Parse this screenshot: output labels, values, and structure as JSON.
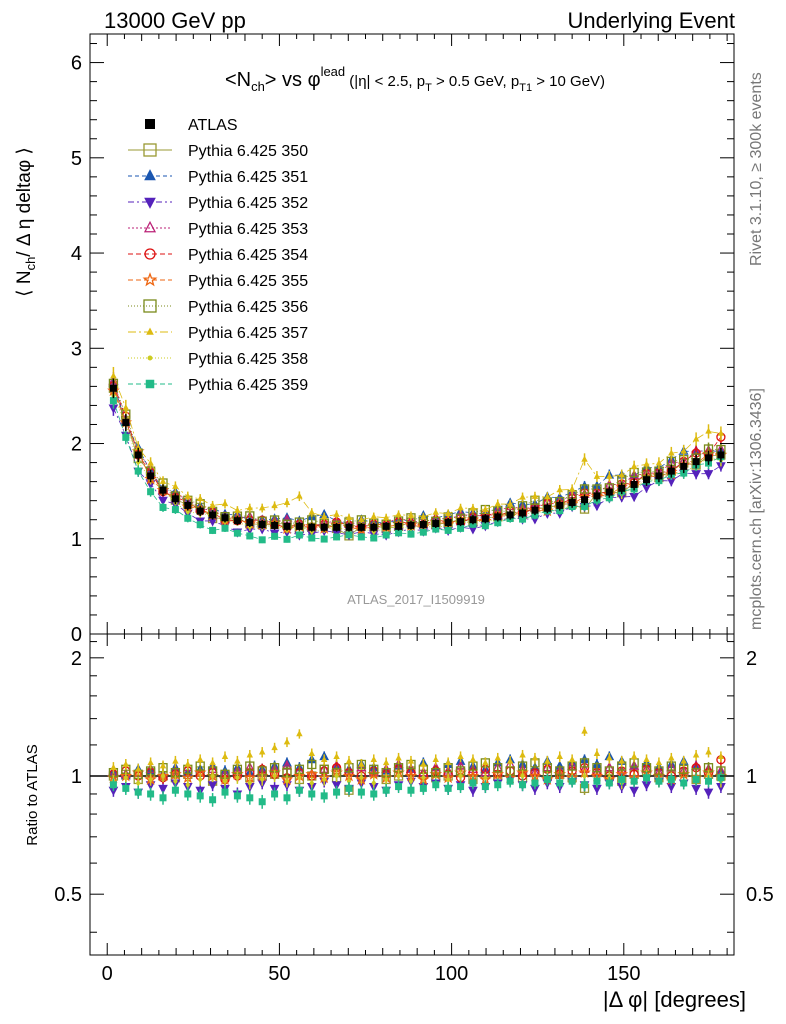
{
  "header": {
    "left": "13000 GeV pp",
    "right": "Underlying Event"
  },
  "side_labels": {
    "rivet": "Rivet 3.1.10, ≥ 300k events",
    "mcplots": "mcplots.cern.ch [arXiv:1306.3436]"
  },
  "chart_data": {
    "type": "scatter",
    "title_parts": {
      "a": "<N",
      "a_sub": "ch",
      "b": "> vs φ",
      "b_sup": "lead",
      "c": " (|η| < 2.5, p",
      "c_sub": "T",
      "d": " > 0.5 GeV, p",
      "d_sub": "T1",
      "e": " > 10 GeV)"
    },
    "ylabel_parts": {
      "a": "⟨ N",
      "a_sub": "ch",
      "b": "/ Δ η deltaφ ⟩"
    },
    "ratio_ylabel": "Ratio to ATLAS",
    "xlabel": "|Δ φ| [degrees]",
    "watermark": "ATLAS_2017_I1509919",
    "xlim": [
      -5,
      182
    ],
    "ylim": [
      0,
      6.3
    ],
    "ratio_ylim": [
      0.35,
      2.3
    ],
    "x_ticks": [
      "0",
      "50",
      "100",
      "150"
    ],
    "y_ticks": [
      "0",
      "1",
      "2",
      "3",
      "4",
      "5",
      "6"
    ],
    "ratio_ticks": [
      "0.5",
      "1",
      "2"
    ],
    "x": [
      1.8,
      5.4,
      9.0,
      12.6,
      16.2,
      19.8,
      23.4,
      27.0,
      30.6,
      34.2,
      37.8,
      41.4,
      45.0,
      48.6,
      52.2,
      55.8,
      59.4,
      63.0,
      66.6,
      70.2,
      73.8,
      77.4,
      81.0,
      84.6,
      88.2,
      91.8,
      95.4,
      99.0,
      102.6,
      106.2,
      109.8,
      113.4,
      117.0,
      120.6,
      124.2,
      127.8,
      131.4,
      135.0,
      138.6,
      142.2,
      145.8,
      149.4,
      153.0,
      156.6,
      160.2,
      163.8,
      167.4,
      171.0,
      174.6,
      178.2
    ],
    "atlas": [
      2.58,
      2.22,
      1.88,
      1.66,
      1.51,
      1.42,
      1.35,
      1.29,
      1.25,
      1.22,
      1.19,
      1.17,
      1.15,
      1.14,
      1.13,
      1.13,
      1.12,
      1.12,
      1.12,
      1.12,
      1.12,
      1.12,
      1.13,
      1.13,
      1.14,
      1.15,
      1.16,
      1.17,
      1.18,
      1.2,
      1.21,
      1.23,
      1.25,
      1.27,
      1.3,
      1.32,
      1.35,
      1.38,
      1.41,
      1.45,
      1.49,
      1.53,
      1.57,
      1.62,
      1.66,
      1.71,
      1.76,
      1.81,
      1.85,
      1.88
    ],
    "atlas_label": "ATLAS",
    "series": [
      {
        "name": "Pythia 6.425 350",
        "color": "#999933",
        "marker": "square-open",
        "dash": "none",
        "ratio": [
          1.0,
          1.01,
          0.98,
          1.02,
          1.0,
          0.99,
          1.01,
          1.03,
          0.97,
          1.0,
          1.02,
          0.99,
          1.0,
          1.01,
          1.03,
          0.98,
          1.0,
          1.04,
          0.99,
          0.92,
          1.01,
          1.02,
          0.98,
          1.0,
          1.03,
          1.01,
          0.99,
          1.0,
          1.02,
          0.98,
          1.01,
          1.0,
          1.03,
          0.99,
          1.02,
          1.0,
          1.01,
          0.99,
          0.93,
          1.02,
          1.0,
          0.97,
          1.01,
          1.03,
          0.99,
          1.0,
          1.02,
          0.98,
          1.01,
          1.0
        ]
      },
      {
        "name": "Pythia 6.425 351",
        "color": "#1a56b0",
        "marker": "triangle-up",
        "dash": "4,3",
        "ratio": [
          1.02,
          1.0,
          1.04,
          1.03,
          1.01,
          1.05,
          1.02,
          1.04,
          1.06,
          1.03,
          1.05,
          1.02,
          1.04,
          1.06,
          1.08,
          1.05,
          1.1,
          1.12,
          1.06,
          1.04,
          1.07,
          1.05,
          1.03,
          1.06,
          1.04,
          1.08,
          1.05,
          1.07,
          1.09,
          1.06,
          1.04,
          1.08,
          1.1,
          1.07,
          1.05,
          1.09,
          1.06,
          1.08,
          1.1,
          1.07,
          1.12,
          1.09,
          1.06,
          1.08,
          1.05,
          1.07,
          1.09,
          1.06,
          1.04,
          1.02
        ]
      },
      {
        "name": "Pythia 6.425 352",
        "color": "#5522bb",
        "marker": "triangle-down",
        "dash": "6,3,2,3",
        "ratio": [
          0.92,
          0.94,
          0.91,
          0.95,
          0.93,
          0.96,
          0.94,
          0.92,
          0.95,
          0.93,
          0.9,
          0.94,
          0.96,
          0.93,
          0.95,
          0.92,
          0.94,
          0.97,
          0.95,
          0.93,
          0.96,
          0.94,
          0.92,
          0.95,
          0.97,
          0.94,
          0.96,
          0.93,
          0.95,
          0.92,
          0.94,
          0.96,
          0.98,
          0.95,
          0.93,
          0.96,
          0.94,
          0.97,
          0.95,
          0.93,
          0.96,
          0.94,
          0.92,
          0.95,
          0.97,
          0.94,
          0.96,
          0.93,
          0.91,
          0.94
        ]
      },
      {
        "name": "Pythia 6.425 353",
        "color": "#bb2277",
        "marker": "triangle-up-open",
        "dash": "2,2",
        "ratio": [
          1.03,
          1.01,
          1.02,
          1.04,
          1.0,
          1.03,
          1.05,
          1.02,
          1.04,
          1.01,
          1.03,
          1.05,
          1.02,
          1.04,
          1.06,
          1.03,
          1.01,
          1.04,
          1.06,
          1.03,
          1.05,
          1.02,
          1.04,
          1.07,
          1.04,
          1.02,
          1.05,
          1.03,
          1.06,
          1.04,
          1.02,
          1.05,
          1.07,
          1.04,
          1.02,
          1.05,
          1.03,
          1.06,
          1.04,
          1.02,
          1.05,
          1.03,
          1.06,
          1.04,
          1.02,
          1.05,
          1.03,
          1.06,
          1.04,
          1.03
        ]
      },
      {
        "name": "Pythia 6.425 354",
        "color": "#dd1111",
        "marker": "circle-open",
        "dash": "5,3",
        "ratio": [
          1.01,
          1.03,
          1.0,
          1.02,
          0.99,
          1.01,
          1.03,
          1.0,
          1.02,
          0.98,
          1.0,
          1.02,
          1.04,
          1.01,
          0.99,
          1.02,
          1.0,
          1.03,
          1.05,
          1.02,
          1.0,
          1.03,
          1.01,
          1.04,
          1.02,
          1.0,
          1.03,
          1.01,
          0.99,
          1.02,
          1.04,
          1.01,
          1.03,
          1.0,
          1.02,
          1.04,
          1.01,
          1.03,
          1.05,
          1.02,
          1.0,
          1.03,
          1.01,
          1.04,
          1.02,
          1.0,
          1.03,
          1.05,
          1.02,
          1.1
        ]
      },
      {
        "name": "Pythia 6.425 355",
        "color": "#ee6611",
        "marker": "star-open",
        "dash": "5,3",
        "ratio": [
          0.99,
          1.0,
          1.02,
          0.98,
          1.0,
          1.01,
          0.99,
          1.02,
          1.0,
          0.98,
          1.01,
          0.99,
          1.0,
          1.02,
          0.98,
          1.0,
          1.01,
          0.99,
          1.02,
          1.0,
          0.98,
          1.01,
          0.99,
          1.02,
          1.0,
          0.98,
          1.01,
          0.99,
          1.02,
          1.0,
          0.98,
          1.01,
          0.99,
          1.02,
          1.0,
          0.98,
          1.01,
          0.99,
          1.02,
          1.0,
          0.98,
          1.01,
          0.99,
          1.02,
          1.0,
          0.98,
          1.01,
          0.99,
          1.02,
          1.0
        ]
      },
      {
        "name": "Pythia 6.425 356",
        "color": "#7a8a1a",
        "marker": "square-open",
        "dash": "1,2",
        "ratio": [
          1.02,
          1.04,
          1.01,
          1.03,
          1.05,
          1.02,
          1.04,
          1.06,
          1.03,
          1.01,
          1.04,
          1.06,
          1.03,
          1.05,
          1.02,
          1.04,
          1.07,
          1.04,
          1.02,
          1.05,
          1.07,
          1.04,
          1.02,
          1.05,
          1.07,
          1.04,
          1.02,
          1.05,
          1.03,
          1.06,
          1.08,
          1.05,
          1.03,
          1.06,
          1.08,
          1.05,
          1.03,
          1.06,
          1.08,
          1.05,
          1.03,
          1.06,
          1.08,
          1.05,
          1.03,
          1.06,
          1.04,
          1.02,
          1.05,
          1.03
        ]
      },
      {
        "name": "Pythia 6.425 357",
        "color": "#ddbb11",
        "marker": "tri-small",
        "dash": "8,3,2,3",
        "ratio": [
          1.05,
          1.07,
          1.04,
          1.08,
          1.06,
          1.09,
          1.07,
          1.1,
          1.08,
          1.12,
          1.09,
          1.13,
          1.15,
          1.18,
          1.22,
          1.28,
          1.14,
          1.1,
          1.12,
          1.09,
          1.07,
          1.1,
          1.08,
          1.11,
          1.09,
          1.07,
          1.1,
          1.08,
          1.12,
          1.1,
          1.08,
          1.11,
          1.09,
          1.13,
          1.11,
          1.09,
          1.12,
          1.1,
          1.3,
          1.14,
          1.11,
          1.09,
          1.12,
          1.1,
          1.08,
          1.11,
          1.09,
          1.13,
          1.15,
          1.12
        ]
      },
      {
        "name": "Pythia 6.425 358",
        "color": "#cccc22",
        "marker": "dot",
        "dash": "1,2",
        "ratio": [
          0.97,
          0.99,
          0.96,
          0.98,
          1.0,
          0.97,
          0.95,
          0.98,
          1.0,
          0.97,
          0.99,
          0.96,
          0.98,
          1.0,
          0.97,
          0.99,
          0.96,
          0.98,
          1.0,
          0.97,
          0.99,
          0.96,
          0.98,
          1.0,
          0.97,
          0.99,
          0.96,
          0.98,
          1.0,
          0.97,
          0.99,
          0.96,
          0.98,
          1.0,
          0.97,
          0.99,
          0.96,
          0.98,
          1.0,
          0.97,
          0.99,
          0.96,
          0.98,
          1.0,
          0.97,
          0.99,
          0.96,
          0.98,
          1.0,
          0.97
        ]
      },
      {
        "name": "Pythia 6.425 359",
        "color": "#22bb88",
        "marker": "square-small",
        "dash": "5,3",
        "ratio": [
          0.95,
          0.93,
          0.91,
          0.9,
          0.88,
          0.92,
          0.9,
          0.89,
          0.87,
          0.91,
          0.89,
          0.88,
          0.86,
          0.9,
          0.88,
          0.92,
          0.9,
          0.89,
          0.91,
          0.93,
          0.91,
          0.9,
          0.92,
          0.94,
          0.92,
          0.93,
          0.95,
          0.93,
          0.94,
          0.96,
          0.94,
          0.95,
          0.97,
          0.95,
          0.96,
          0.98,
          0.96,
          0.97,
          0.95,
          0.97,
          0.96,
          0.98,
          0.97,
          0.99,
          0.97,
          0.98,
          0.96,
          0.98,
          0.97,
          0.99
        ]
      }
    ]
  }
}
